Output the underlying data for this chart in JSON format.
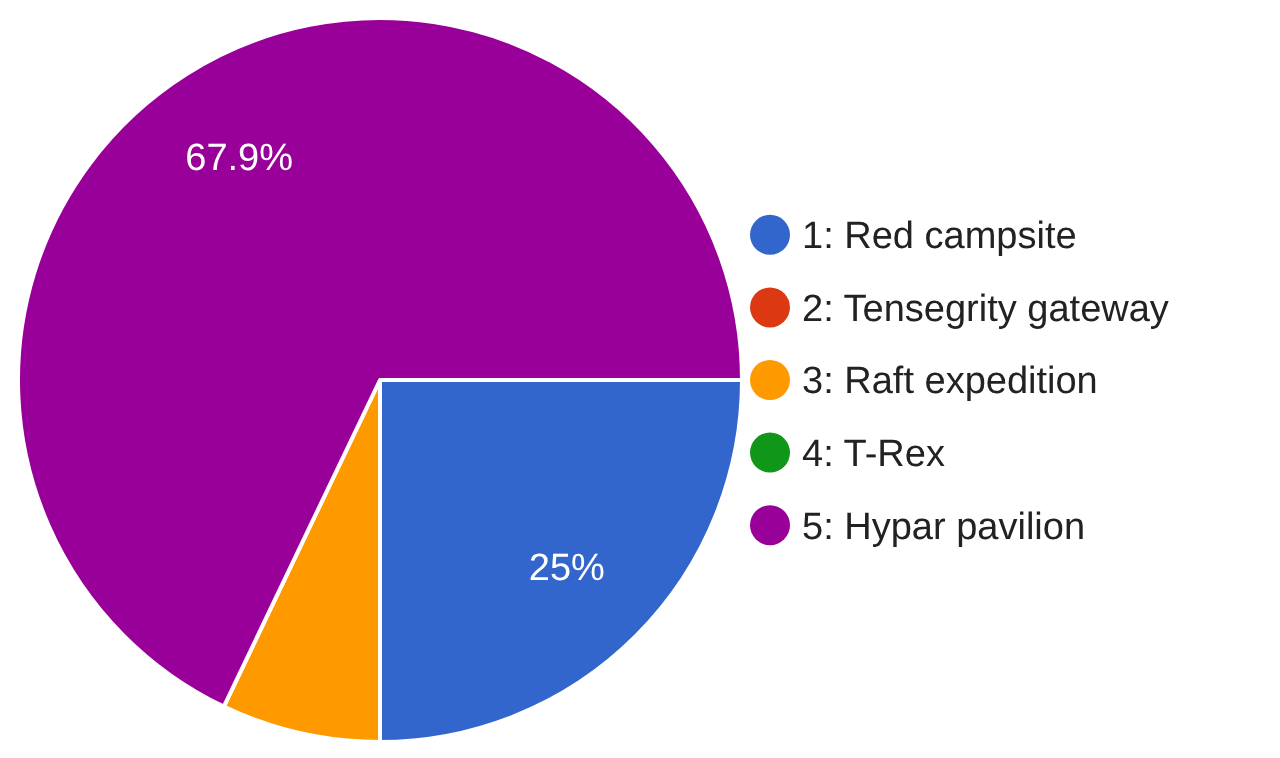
{
  "chart_data": {
    "type": "pie",
    "categories": [
      "1: Red campsite",
      "2: Tensegrity gateway",
      "3: Raft expedition",
      "4: T-Rex",
      "5: Hypar pavilion"
    ],
    "values": [
      25,
      0,
      7.1,
      0,
      67.9
    ],
    "colors": [
      "#3366cc",
      "#dc3912",
      "#ff9900",
      "#109618",
      "#990099"
    ],
    "value_labels": [
      "25%",
      null,
      null,
      null,
      "67.9%"
    ],
    "legend": "right"
  }
}
